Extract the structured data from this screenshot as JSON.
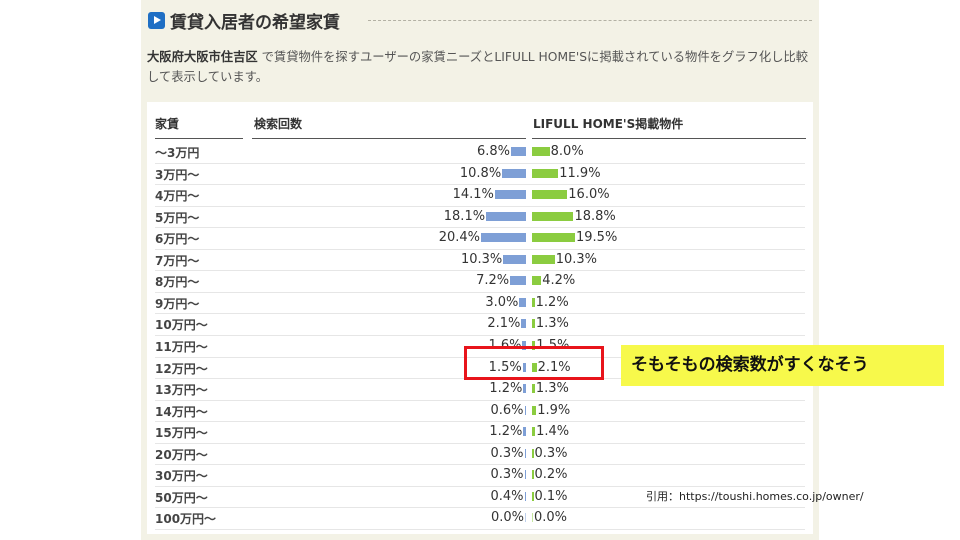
{
  "section": {
    "title": "賃貸入居者の希望家賃",
    "area_name": "大阪府大阪市住吉区",
    "description": "で賃貸物件を探すユーザーの家賃ニーズとLIFULL HOME'Sに掲載されている物件をグラフ化し比較して表示しています。"
  },
  "annotation": {
    "callout": "そもそもの検索数がすくなそう",
    "citation": "引用：https://toushi.homes.co.jp/owner/",
    "highlight_color": "#e8141b",
    "callout_color": "#f7f94b"
  },
  "colors": {
    "search_bar": "#7e9fd6",
    "listing_bar": "#8bcc40",
    "heading_icon": "#1f6fc4"
  },
  "chart_data": {
    "type": "bar",
    "columns": [
      "家賃",
      "検索回数",
      "LIFULL HOME'S掲載物件"
    ],
    "categories": [
      "～3万円",
      "3万円～",
      "4万円～",
      "5万円～",
      "6万円～",
      "7万円～",
      "8万円～",
      "9万円～",
      "10万円～",
      "11万円～",
      "12万円～",
      "13万円～",
      "14万円～",
      "15万円～",
      "20万円～",
      "30万円～",
      "50万円～",
      "100万円～"
    ],
    "series": [
      {
        "name": "検索回数",
        "values": [
          6.8,
          10.8,
          14.1,
          18.1,
          20.4,
          10.3,
          7.2,
          3.0,
          2.1,
          1.6,
          1.5,
          1.2,
          0.6,
          1.2,
          0.3,
          0.3,
          0.4,
          0.0
        ]
      },
      {
        "name": "LIFULL HOME'S掲載物件",
        "values": [
          8.0,
          11.9,
          16.0,
          18.8,
          19.5,
          10.3,
          4.2,
          1.2,
          1.3,
          1.5,
          2.1,
          1.3,
          1.9,
          1.4,
          0.3,
          0.2,
          0.1,
          0.0
        ]
      }
    ],
    "unit": "%",
    "highlighted_category": "12万円～",
    "xlim": [
      0,
      20.4
    ]
  }
}
